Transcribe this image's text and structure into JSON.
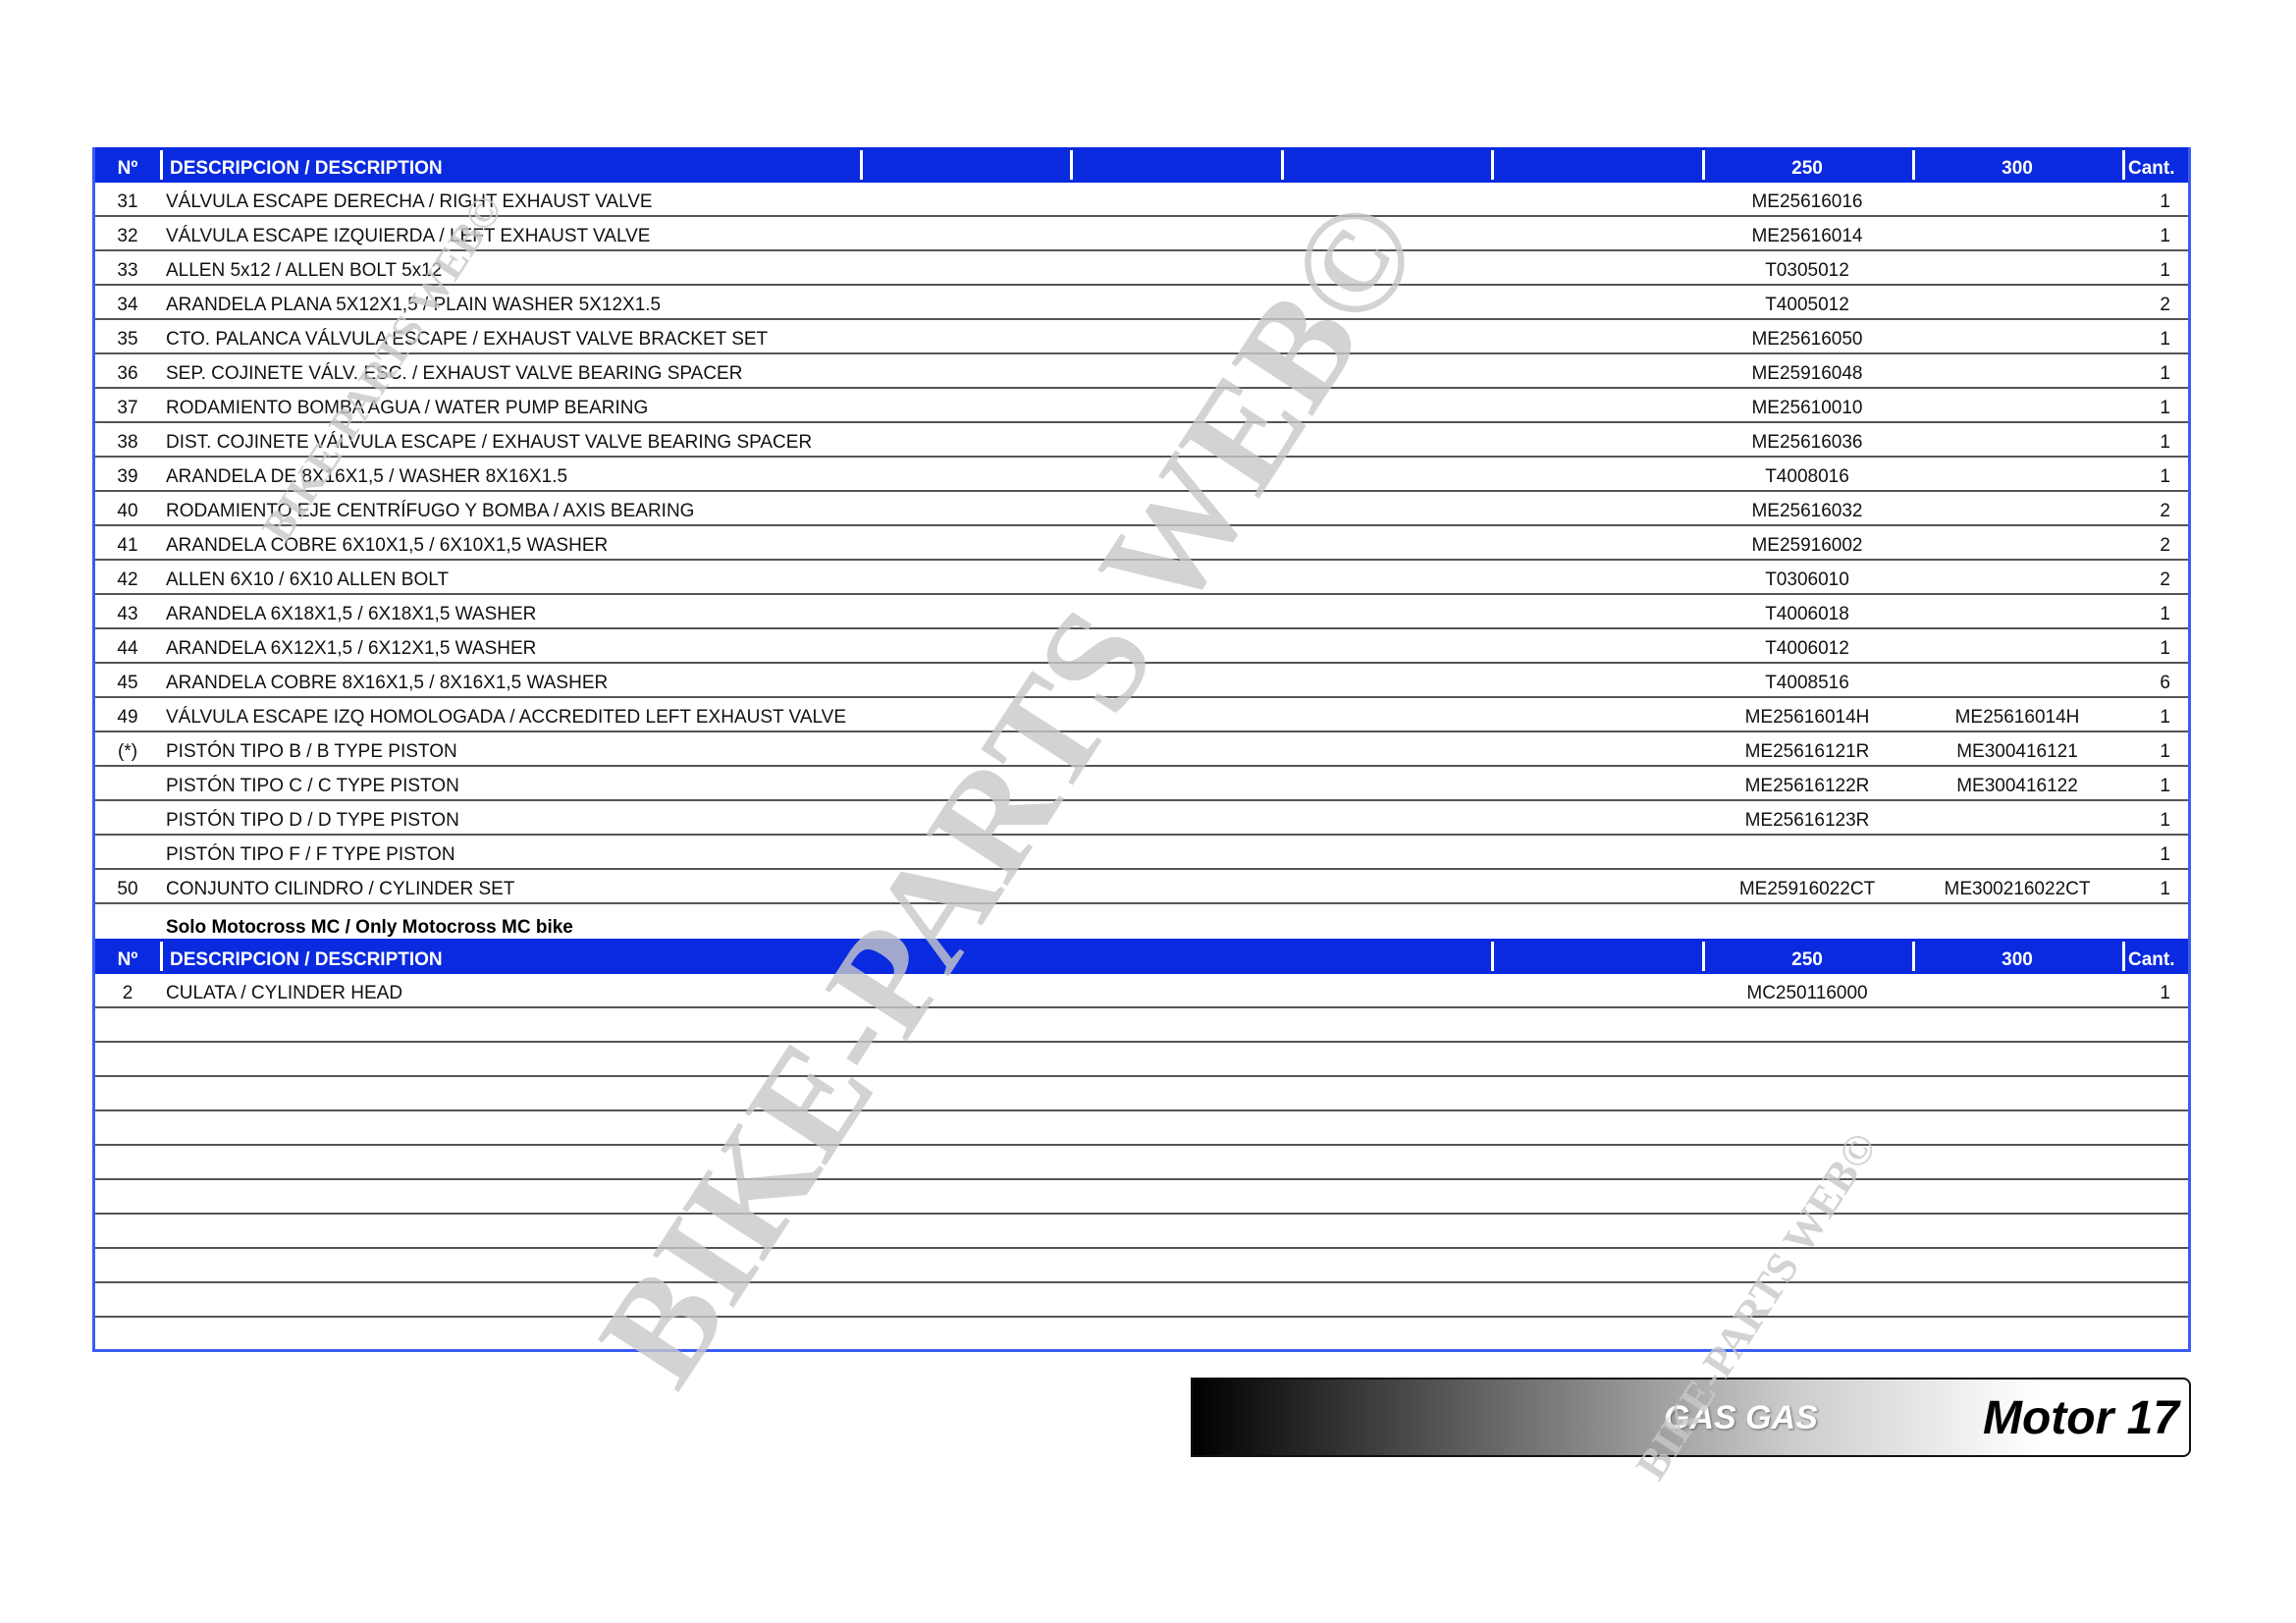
{
  "header": {
    "no": "Nº",
    "description": "DESCRIPCION / DESCRIPTION",
    "col_250": "250",
    "col_300": "300",
    "qty": "Cant."
  },
  "rows": [
    {
      "no": "31",
      "description": "VÁLVULA ESCAPE DERECHA / RIGHT EXHAUST VALVE",
      "p250": "ME25616016",
      "p300": "",
      "qty": "1"
    },
    {
      "no": "32",
      "description": "VÁLVULA ESCAPE IZQUIERDA / LEFT EXHAUST VALVE",
      "p250": "ME25616014",
      "p300": "",
      "qty": "1"
    },
    {
      "no": "33",
      "description": "ALLEN 5x12 / ALLEN BOLT 5x12",
      "p250": "T0305012",
      "p300": "",
      "qty": "1"
    },
    {
      "no": "34",
      "description": "ARANDELA PLANA 5X12X1,5 / PLAIN WASHER 5X12X1.5",
      "p250": "T4005012",
      "p300": "",
      "qty": "2"
    },
    {
      "no": "35",
      "description": "CTO. PALANCA VÁLVULA ESCAPE / EXHAUST VALVE BRACKET SET",
      "p250": "ME25616050",
      "p300": "",
      "qty": "1"
    },
    {
      "no": "36",
      "description": "SEP. COJINETE VÁLV. ESC. / EXHAUST VALVE BEARING SPACER",
      "p250": "ME25916048",
      "p300": "",
      "qty": "1"
    },
    {
      "no": "37",
      "description": "RODAMIENTO BOMBA AGUA / WATER PUMP BEARING",
      "p250": "ME25610010",
      "p300": "",
      "qty": "1"
    },
    {
      "no": "38",
      "description": "DIST. COJINETE VÁLVULA ESCAPE / EXHAUST VALVE BEARING SPACER",
      "p250": "ME25616036",
      "p300": "",
      "qty": "1"
    },
    {
      "no": "39",
      "description": "ARANDELA DE 8X16X1,5 / WASHER 8X16X1.5",
      "p250": "T4008016",
      "p300": "",
      "qty": "1"
    },
    {
      "no": "40",
      "description": "RODAMIENTO EJE CENTRÍFUGO Y BOMBA / AXIS BEARING",
      "p250": "ME25616032",
      "p300": "",
      "qty": "2"
    },
    {
      "no": "41",
      "description": "ARANDELA COBRE 6X10X1,5 / 6X10X1,5 WASHER",
      "p250": "ME25916002",
      "p300": "",
      "qty": "2"
    },
    {
      "no": "42",
      "description": "ALLEN 6X10 / 6X10 ALLEN BOLT",
      "p250": "T0306010",
      "p300": "",
      "qty": "2"
    },
    {
      "no": "43",
      "description": "ARANDELA 6X18X1,5 / 6X18X1,5 WASHER",
      "p250": "T4006018",
      "p300": "",
      "qty": "1"
    },
    {
      "no": "44",
      "description": "ARANDELA 6X12X1,5 / 6X12X1,5 WASHER",
      "p250": "T4006012",
      "p300": "",
      "qty": "1"
    },
    {
      "no": "45",
      "description": "ARANDELA COBRE 8X16X1,5 / 8X16X1,5 WASHER",
      "p250": "T4008516",
      "p300": "",
      "qty": "6"
    },
    {
      "no": "49",
      "description": "VÁLVULA ESCAPE IZQ HOMOLOGADA / ACCREDITED LEFT EXHAUST VALVE",
      "p250": "ME25616014H",
      "p300": "ME25616014H",
      "qty": "1"
    },
    {
      "no": "(*)",
      "description": "PISTÓN TIPO B / B TYPE PISTON",
      "p250": "ME25616121R",
      "p300": "ME300416121",
      "qty": "1"
    },
    {
      "no": "",
      "description": "PISTÓN TIPO C / C TYPE PISTON",
      "p250": "ME25616122R",
      "p300": "ME300416122",
      "qty": "1"
    },
    {
      "no": "",
      "description": "PISTÓN TIPO D / D TYPE PISTON",
      "p250": "ME25616123R",
      "p300": "",
      "qty": "1"
    },
    {
      "no": "",
      "description": "PISTÓN TIPO F / F TYPE PISTON",
      "p250": "",
      "p300": "",
      "qty": "1"
    },
    {
      "no": "50",
      "description": "CONJUNTO CILINDRO / CYLINDER SET",
      "p250": "ME25916022CT",
      "p300": "ME300216022CT",
      "qty": "1"
    }
  ],
  "section_note": "Solo Motocross MC / Only Motocross MC bike",
  "rows2": [
    {
      "no": "2",
      "description": "CULATA / CYLINDER HEAD",
      "p250": "MC250116000",
      "p300": "",
      "qty": "1"
    }
  ],
  "blank_rows": 10,
  "footer": {
    "brand": "GAS GAS",
    "title": "Motor 17"
  },
  "watermark": {
    "text": "BIKE-PARTS WEB",
    "symbol": "©"
  },
  "colors": {
    "header_bg": "#0a2ae0",
    "border": "#3b5cf5",
    "watermark": "#c8c8c8"
  }
}
